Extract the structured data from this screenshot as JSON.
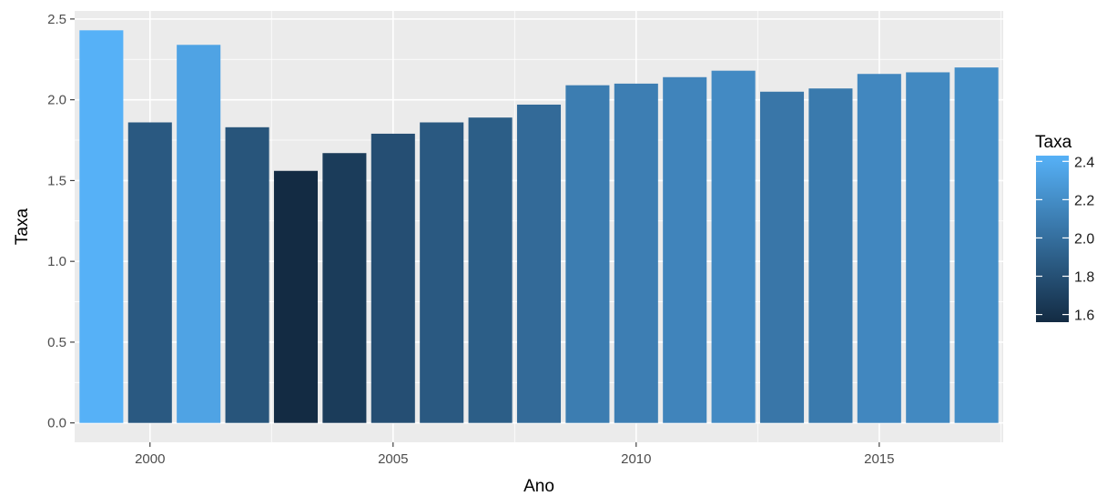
{
  "chart_data": {
    "type": "bar",
    "xlabel": "Ano",
    "ylabel": "Taxa",
    "x": [
      1999,
      2000,
      2001,
      2002,
      2003,
      2004,
      2005,
      2006,
      2007,
      2008,
      2009,
      2010,
      2011,
      2012,
      2013,
      2014,
      2015,
      2016,
      2017
    ],
    "values": [
      2.43,
      1.86,
      2.34,
      1.83,
      1.56,
      1.67,
      1.79,
      1.86,
      1.89,
      1.97,
      2.09,
      2.1,
      2.14,
      2.18,
      2.05,
      2.07,
      2.16,
      2.17,
      2.2
    ],
    "xlim": [
      1998.45,
      2017.55
    ],
    "ylim": [
      -0.12,
      2.55
    ],
    "x_ticks": [
      2000,
      2005,
      2010,
      2015
    ],
    "y_ticks": [
      0.0,
      0.5,
      1.0,
      1.5,
      2.0,
      2.5
    ],
    "y_tick_labels": [
      "0.0",
      "0.5",
      "1.0",
      "1.5",
      "2.0",
      "2.5"
    ],
    "grid": true,
    "legend": {
      "title": "Taxa",
      "position": "right",
      "type": "colorbar",
      "range": [
        1.56,
        2.43
      ],
      "ticks": [
        1.6,
        1.8,
        2.0,
        2.2,
        2.4
      ],
      "tick_labels": [
        "1.6",
        "1.8",
        "2.0",
        "2.2",
        "2.4"
      ]
    },
    "colors": {
      "low": "#132b43",
      "high": "#56b1f7",
      "panel": "#ebebeb",
      "grid": "#ffffff"
    }
  }
}
